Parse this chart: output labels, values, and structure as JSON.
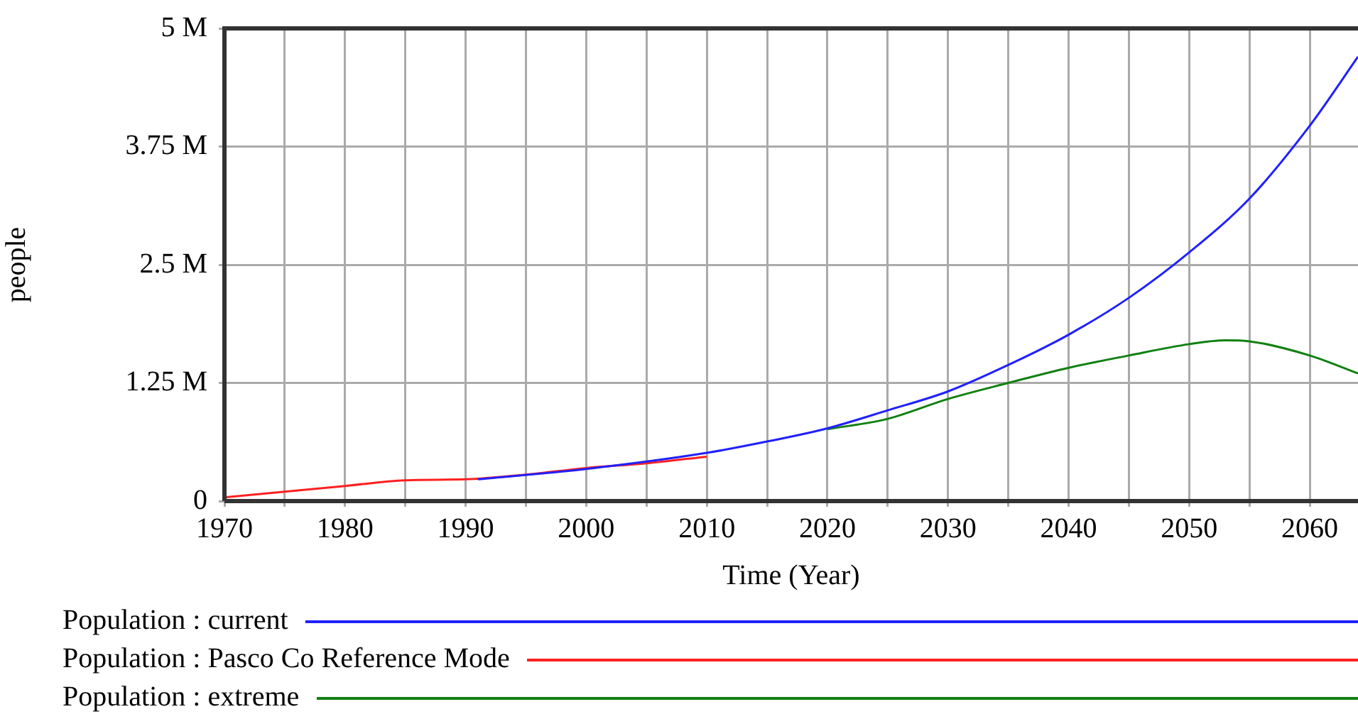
{
  "chart_data": {
    "type": "line",
    "xlabel": "Time (Year)",
    "ylabel": "people",
    "xlim": [
      1970,
      2064
    ],
    "xticks": [
      1970,
      {
        "value": 1975,
        "label": null
      },
      1980,
      {
        "value": 1985,
        "label": null
      },
      1990,
      {
        "value": 1995,
        "label": null
      },
      2000,
      {
        "value": 2005,
        "label": null
      },
      2010,
      {
        "value": 2015,
        "label": null
      },
      2020,
      {
        "value": 2025,
        "label": null
      },
      2030,
      {
        "value": 2035,
        "label": null
      },
      2040,
      {
        "value": 2045,
        "label": null
      },
      2050,
      {
        "value": 2055,
        "label": null
      },
      2060
    ],
    "ylim": [
      0,
      5000000
    ],
    "yticks": [
      {
        "value": 0,
        "label": "0"
      },
      {
        "value": 1250000,
        "label": "1.25 M"
      },
      {
        "value": 2500000,
        "label": "2.5 M"
      },
      {
        "value": 3750000,
        "label": "3.75 M"
      },
      {
        "value": 5000000,
        "label": "5 M"
      }
    ],
    "grid": true,
    "legend": "bottom",
    "marker": "none",
    "line_style": "solid",
    "series": [
      {
        "name": "Population : current",
        "color": "#2020ff",
        "x": [
          1991,
          2000,
          2010,
          2015,
          2020,
          2025,
          2030,
          2035,
          2040,
          2045,
          2050,
          2055,
          2060,
          2064
        ],
        "values": [
          230000,
          340000,
          510000,
          630000,
          770000,
          960000,
          1160000,
          1440000,
          1760000,
          2150000,
          2630000,
          3200000,
          3970000,
          4700000
        ]
      },
      {
        "name": "Population : Pasco Co Reference Mode",
        "color": "#ff2020",
        "x": [
          1970,
          1975,
          1980,
          1985,
          1990,
          1995,
          2000,
          2005,
          2010
        ],
        "values": [
          40000,
          100000,
          160000,
          220000,
          230000,
          280000,
          350000,
          400000,
          470000
        ]
      },
      {
        "name": "Population : extreme",
        "color": "#108010",
        "x": [
          2020,
          2025,
          2030,
          2035,
          2040,
          2045,
          2050,
          2053,
          2055,
          2060,
          2064
        ],
        "values": [
          760000,
          870000,
          1080000,
          1250000,
          1410000,
          1540000,
          1660000,
          1700000,
          1690000,
          1540000,
          1350000
        ]
      }
    ]
  }
}
